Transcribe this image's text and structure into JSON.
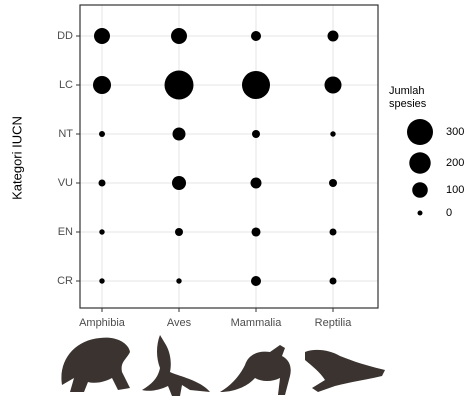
{
  "chart_data": {
    "type": "bubble",
    "x_categories": [
      "Amphibia",
      "Aves",
      "Mammalia",
      "Reptilia"
    ],
    "y_categories": [
      "CR",
      "EN",
      "VU",
      "NT",
      "LC",
      "DD"
    ],
    "y_label": "Kategori IUCN",
    "size_values": [
      [
        2,
        2,
        35,
        11
      ],
      [
        2,
        18,
        26,
        11
      ],
      [
        11,
        79,
        44,
        18
      ],
      [
        5,
        66,
        18,
        2
      ],
      [
        138,
        376,
        350,
        122
      ],
      [
        106,
        106,
        35,
        44
      ]
    ],
    "color": "#000000",
    "grid": true,
    "size_legend": {
      "title": "Jumlah spesies",
      "values": [
        300,
        200,
        100,
        0
      ]
    }
  }
}
